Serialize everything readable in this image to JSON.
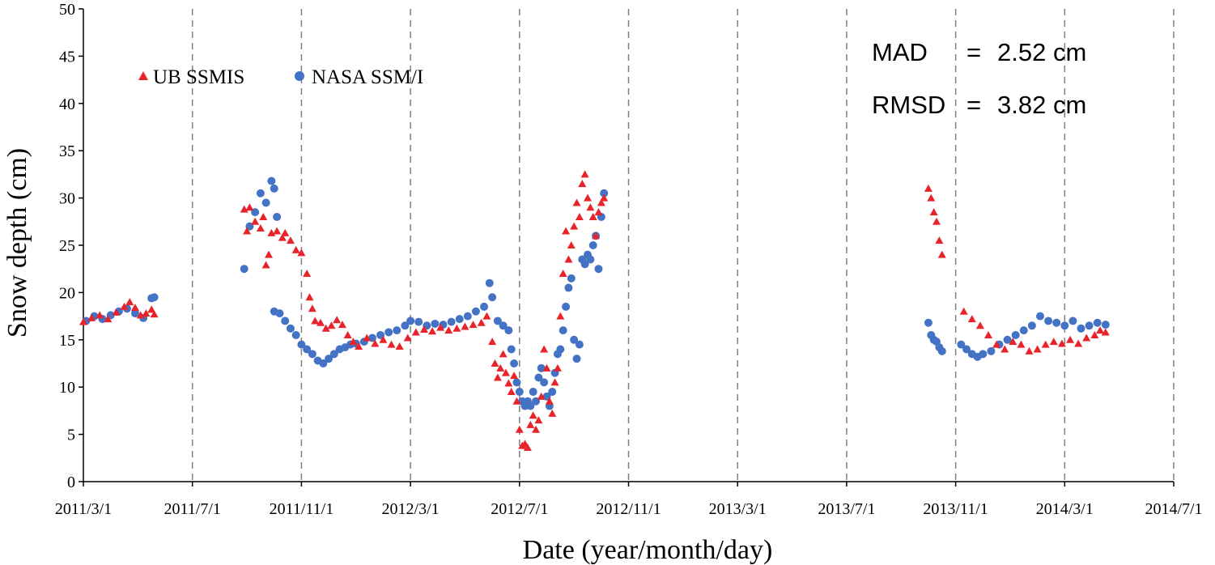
{
  "chart_data": {
    "type": "scatter",
    "xlabel": "Date (year/month/day)",
    "ylabel": "Snow depth (cm)",
    "ylim": [
      0,
      50
    ],
    "yticks": [
      0,
      5,
      10,
      15,
      20,
      25,
      30,
      35,
      40,
      45,
      50
    ],
    "xlim": [
      0,
      40
    ],
    "xticks": [
      {
        "value": 0,
        "label": "2011/3/1"
      },
      {
        "value": 4,
        "label": "2011/7/1"
      },
      {
        "value": 8,
        "label": "2011/11/1"
      },
      {
        "value": 12,
        "label": "2012/3/1"
      },
      {
        "value": 16,
        "label": "2012/7/1"
      },
      {
        "value": 20,
        "label": "2012/11/1"
      },
      {
        "value": 24,
        "label": "2013/3/1"
      },
      {
        "value": 28,
        "label": "2013/7/1"
      },
      {
        "value": 32,
        "label": "2013/11/1"
      },
      {
        "value": 36,
        "label": "2014/3/1"
      },
      {
        "value": 40,
        "label": "2014/7/1"
      }
    ],
    "grid": "vertical dashed lines at x ticks",
    "legend_position": "top-left",
    "stats": {
      "mad_label": "MAD",
      "mad_value": "2.52 cm",
      "rmsd_label": "RMSD",
      "rmsd_value": "3.82 cm",
      "equals": "="
    },
    "series": [
      {
        "name": "UB SSMIS",
        "marker": "triangle",
        "color": "#e8232a",
        "points": [
          [
            0.0,
            16.9
          ],
          [
            0.3,
            17.3
          ],
          [
            0.6,
            17.6
          ],
          [
            0.9,
            17.2
          ],
          [
            1.2,
            17.9
          ],
          [
            1.5,
            18.5
          ],
          [
            1.7,
            19.0
          ],
          [
            1.9,
            18.4
          ],
          [
            2.1,
            17.6
          ],
          [
            2.3,
            17.8
          ],
          [
            2.5,
            18.2
          ],
          [
            2.6,
            17.7
          ],
          [
            5.9,
            28.8
          ],
          [
            6.0,
            26.5
          ],
          [
            6.1,
            29.0
          ],
          [
            6.3,
            27.5
          ],
          [
            6.5,
            26.8
          ],
          [
            6.6,
            28.0
          ],
          [
            6.7,
            22.9
          ],
          [
            6.8,
            24.0
          ],
          [
            6.9,
            26.3
          ],
          [
            7.1,
            26.5
          ],
          [
            7.3,
            25.8
          ],
          [
            7.4,
            26.3
          ],
          [
            7.6,
            25.5
          ],
          [
            7.8,
            24.5
          ],
          [
            8.0,
            24.2
          ],
          [
            8.2,
            22.0
          ],
          [
            8.3,
            19.5
          ],
          [
            8.4,
            18.3
          ],
          [
            8.5,
            17.0
          ],
          [
            8.7,
            16.8
          ],
          [
            8.9,
            16.2
          ],
          [
            9.1,
            16.5
          ],
          [
            9.3,
            17.1
          ],
          [
            9.5,
            16.6
          ],
          [
            9.7,
            15.5
          ],
          [
            9.9,
            14.8
          ],
          [
            10.1,
            14.3
          ],
          [
            10.4,
            15.2
          ],
          [
            10.7,
            14.6
          ],
          [
            11.0,
            15.0
          ],
          [
            11.3,
            14.5
          ],
          [
            11.6,
            14.3
          ],
          [
            11.9,
            15.2
          ],
          [
            12.2,
            15.8
          ],
          [
            12.5,
            16.1
          ],
          [
            12.8,
            15.9
          ],
          [
            13.1,
            16.3
          ],
          [
            13.4,
            16.0
          ],
          [
            13.7,
            16.2
          ],
          [
            14.0,
            16.4
          ],
          [
            14.3,
            16.6
          ],
          [
            14.6,
            16.8
          ],
          [
            14.8,
            17.5
          ],
          [
            15.0,
            14.8
          ],
          [
            15.1,
            12.5
          ],
          [
            15.2,
            11.0
          ],
          [
            15.3,
            12.0
          ],
          [
            15.4,
            13.5
          ],
          [
            15.5,
            11.5
          ],
          [
            15.6,
            10.4
          ],
          [
            15.7,
            9.5
          ],
          [
            15.8,
            11.2
          ],
          [
            15.9,
            8.5
          ],
          [
            16.0,
            5.5
          ],
          [
            16.1,
            3.8
          ],
          [
            16.2,
            4.0
          ],
          [
            16.3,
            3.6
          ],
          [
            16.4,
            6.0
          ],
          [
            16.5,
            7.0
          ],
          [
            16.6,
            5.5
          ],
          [
            16.7,
            6.5
          ],
          [
            16.8,
            9.0
          ],
          [
            16.9,
            14.0
          ],
          [
            17.0,
            12.0
          ],
          [
            17.1,
            8.5
          ],
          [
            17.2,
            7.2
          ],
          [
            17.3,
            10.5
          ],
          [
            17.4,
            12.0
          ],
          [
            17.5,
            17.5
          ],
          [
            17.6,
            22.0
          ],
          [
            17.7,
            26.5
          ],
          [
            17.8,
            23.5
          ],
          [
            17.9,
            25.0
          ],
          [
            18.0,
            27.0
          ],
          [
            18.1,
            29.5
          ],
          [
            18.2,
            28.0
          ],
          [
            18.3,
            31.5
          ],
          [
            18.4,
            32.5
          ],
          [
            18.5,
            30.0
          ],
          [
            18.6,
            29.0
          ],
          [
            18.7,
            28.0
          ],
          [
            18.8,
            26.0
          ],
          [
            18.9,
            28.5
          ],
          [
            19.0,
            29.5
          ],
          [
            19.1,
            30.0
          ],
          [
            31.0,
            31.0
          ],
          [
            31.1,
            30.0
          ],
          [
            31.2,
            28.5
          ],
          [
            31.3,
            27.5
          ],
          [
            31.4,
            25.5
          ],
          [
            31.5,
            24.0
          ],
          [
            32.3,
            18.0
          ],
          [
            32.6,
            17.2
          ],
          [
            32.9,
            16.5
          ],
          [
            33.2,
            15.5
          ],
          [
            33.5,
            14.5
          ],
          [
            33.8,
            14.0
          ],
          [
            34.1,
            14.8
          ],
          [
            34.4,
            14.5
          ],
          [
            34.7,
            13.8
          ],
          [
            35.0,
            14.0
          ],
          [
            35.3,
            14.5
          ],
          [
            35.6,
            14.8
          ],
          [
            35.9,
            14.6
          ],
          [
            36.2,
            15.0
          ],
          [
            36.5,
            14.6
          ],
          [
            36.8,
            15.2
          ],
          [
            37.1,
            15.5
          ],
          [
            37.3,
            16.0
          ],
          [
            37.5,
            15.8
          ]
        ]
      },
      {
        "name": "NASA SSM/I",
        "marker": "circle",
        "color": "#4472c4",
        "points": [
          [
            0.1,
            17.0
          ],
          [
            0.4,
            17.5
          ],
          [
            0.7,
            17.2
          ],
          [
            1.0,
            17.6
          ],
          [
            1.3,
            18.0
          ],
          [
            1.6,
            18.3
          ],
          [
            1.9,
            17.8
          ],
          [
            2.2,
            17.3
          ],
          [
            2.5,
            19.4
          ],
          [
            2.6,
            19.5
          ],
          [
            5.9,
            22.5
          ],
          [
            6.1,
            27.0
          ],
          [
            6.3,
            28.5
          ],
          [
            6.5,
            30.5
          ],
          [
            6.7,
            29.5
          ],
          [
            6.9,
            31.8
          ],
          [
            7.0,
            31.0
          ],
          [
            7.1,
            28.0
          ],
          [
            7.0,
            18.0
          ],
          [
            7.2,
            17.8
          ],
          [
            7.4,
            17.0
          ],
          [
            7.6,
            16.2
          ],
          [
            7.8,
            15.5
          ],
          [
            8.0,
            14.5
          ],
          [
            8.2,
            14.0
          ],
          [
            8.4,
            13.5
          ],
          [
            8.6,
            12.8
          ],
          [
            8.8,
            12.5
          ],
          [
            9.0,
            13.0
          ],
          [
            9.2,
            13.5
          ],
          [
            9.4,
            14.0
          ],
          [
            9.6,
            14.2
          ],
          [
            9.8,
            14.5
          ],
          [
            10.0,
            14.6
          ],
          [
            10.3,
            14.8
          ],
          [
            10.6,
            15.2
          ],
          [
            10.9,
            15.5
          ],
          [
            11.2,
            15.8
          ],
          [
            11.5,
            16.0
          ],
          [
            11.8,
            16.5
          ],
          [
            12.0,
            17.0
          ],
          [
            12.3,
            16.9
          ],
          [
            12.6,
            16.5
          ],
          [
            12.9,
            16.7
          ],
          [
            13.2,
            16.6
          ],
          [
            13.5,
            16.9
          ],
          [
            13.8,
            17.2
          ],
          [
            14.1,
            17.5
          ],
          [
            14.4,
            18.0
          ],
          [
            14.7,
            18.5
          ],
          [
            14.9,
            21.0
          ],
          [
            15.0,
            19.5
          ],
          [
            15.2,
            17.0
          ],
          [
            15.4,
            16.5
          ],
          [
            15.6,
            16.0
          ],
          [
            15.7,
            14.0
          ],
          [
            15.8,
            12.5
          ],
          [
            15.9,
            10.5
          ],
          [
            16.0,
            9.5
          ],
          [
            16.1,
            8.5
          ],
          [
            16.2,
            8.0
          ],
          [
            16.3,
            8.5
          ],
          [
            16.4,
            8.0
          ],
          [
            16.5,
            9.5
          ],
          [
            16.6,
            8.5
          ],
          [
            16.7,
            11.0
          ],
          [
            16.8,
            12.0
          ],
          [
            16.9,
            10.5
          ],
          [
            17.0,
            9.0
          ],
          [
            17.1,
            8.0
          ],
          [
            17.2,
            9.5
          ],
          [
            17.3,
            11.5
          ],
          [
            17.4,
            13.5
          ],
          [
            17.5,
            14.0
          ],
          [
            17.6,
            16.0
          ],
          [
            17.7,
            18.5
          ],
          [
            17.8,
            20.5
          ],
          [
            17.9,
            21.5
          ],
          [
            18.0,
            15.0
          ],
          [
            18.1,
            13.0
          ],
          [
            18.2,
            14.5
          ],
          [
            18.3,
            23.5
          ],
          [
            18.4,
            23.0
          ],
          [
            18.5,
            24.0
          ],
          [
            18.6,
            23.5
          ],
          [
            18.7,
            25.0
          ],
          [
            18.8,
            26.0
          ],
          [
            18.9,
            22.5
          ],
          [
            19.0,
            28.0
          ],
          [
            19.1,
            30.5
          ],
          [
            31.0,
            16.8
          ],
          [
            31.1,
            15.5
          ],
          [
            31.2,
            15.0
          ],
          [
            31.3,
            14.8
          ],
          [
            31.4,
            14.2
          ],
          [
            31.5,
            13.8
          ],
          [
            32.2,
            14.5
          ],
          [
            32.4,
            14.0
          ],
          [
            32.6,
            13.5
          ],
          [
            32.8,
            13.2
          ],
          [
            33.0,
            13.5
          ],
          [
            33.3,
            13.8
          ],
          [
            33.6,
            14.5
          ],
          [
            33.9,
            15.0
          ],
          [
            34.2,
            15.5
          ],
          [
            34.5,
            16.0
          ],
          [
            34.8,
            16.5
          ],
          [
            35.1,
            17.5
          ],
          [
            35.4,
            17.0
          ],
          [
            35.7,
            16.8
          ],
          [
            36.0,
            16.5
          ],
          [
            36.3,
            17.0
          ],
          [
            36.6,
            16.2
          ],
          [
            36.9,
            16.5
          ],
          [
            37.2,
            16.8
          ],
          [
            37.5,
            16.6
          ]
        ]
      }
    ]
  }
}
